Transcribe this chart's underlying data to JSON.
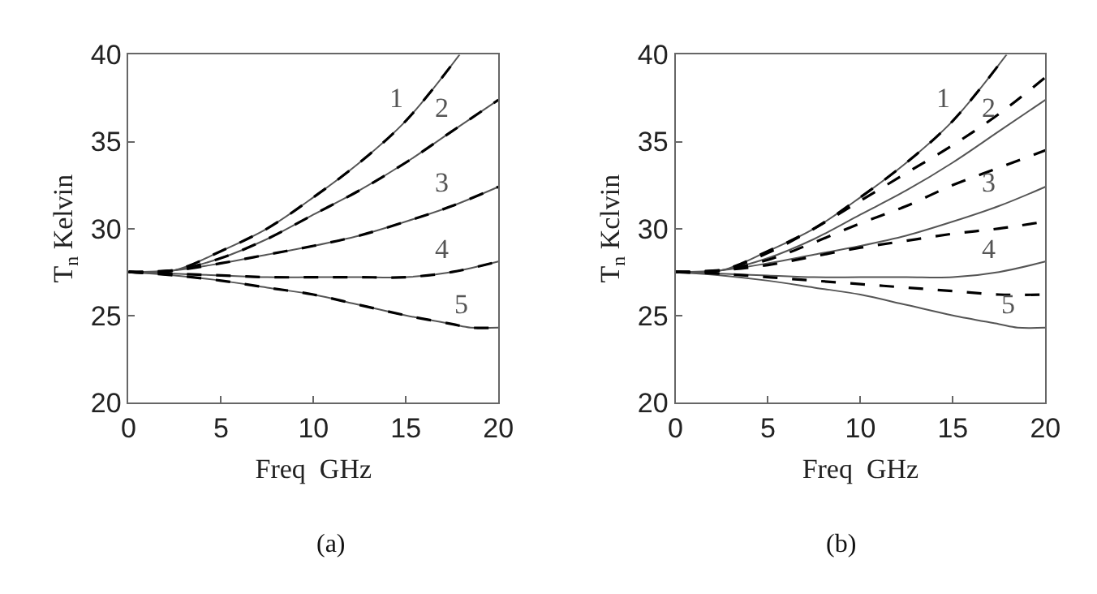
{
  "chart_data": [
    {
      "type": "line",
      "xlabel": "Freq  GHz",
      "ylabel": "T$_{n}$ Kelvin",
      "xlim": [
        0,
        20
      ],
      "ylim": [
        20,
        40
      ],
      "xticks": [
        0,
        5,
        10,
        15,
        20
      ],
      "yticks": [
        20,
        25,
        30,
        35,
        40
      ],
      "marker": "none",
      "series": [
        {
          "name": "1",
          "color": "#555555",
          "line_style": "solid",
          "x": [
            0,
            2.5,
            5,
            7.5,
            10,
            12.5,
            15,
            17.9
          ],
          "values": [
            27.5,
            27.6,
            28.7,
            30.0,
            31.8,
            33.8,
            36.2,
            40
          ]
        },
        {
          "name": "2",
          "color": "#555555",
          "line_style": "solid",
          "x": [
            0,
            2.5,
            5,
            7.5,
            10,
            12.5,
            15,
            17.5,
            20
          ],
          "values": [
            27.5,
            27.6,
            28.3,
            29.4,
            30.8,
            32.2,
            33.8,
            35.6,
            37.4
          ]
        },
        {
          "name": "3",
          "color": "#555555",
          "line_style": "solid",
          "x": [
            0,
            2.5,
            5,
            7.5,
            10,
            12.5,
            15,
            17.5,
            20
          ],
          "values": [
            27.5,
            27.6,
            28.0,
            28.5,
            29.0,
            29.6,
            30.4,
            31.3,
            32.4
          ]
        },
        {
          "name": "4",
          "color": "#555555",
          "line_style": "solid",
          "x": [
            0,
            2.5,
            5,
            7.5,
            10,
            12.5,
            15,
            17.5,
            20
          ],
          "values": [
            27.5,
            27.4,
            27.3,
            27.2,
            27.2,
            27.2,
            27.2,
            27.5,
            28.1
          ]
        },
        {
          "name": "5",
          "color": "#555555",
          "line_style": "solid",
          "x": [
            0,
            2.5,
            5,
            7.5,
            10,
            12.5,
            15,
            17.5,
            18.5,
            20
          ],
          "values": [
            27.5,
            27.3,
            27.0,
            26.6,
            26.2,
            25.6,
            25.0,
            24.5,
            24.3,
            24.3
          ]
        },
        {
          "color": "#000000",
          "line_style": "dashed",
          "x": [
            0,
            2.5,
            5,
            7.5,
            10,
            12.5,
            15,
            17.9
          ],
          "values": [
            27.5,
            27.6,
            28.7,
            30.0,
            31.8,
            33.8,
            36.2,
            40
          ]
        },
        {
          "color": "#000000",
          "line_style": "dashed",
          "x": [
            0,
            2.5,
            5,
            7.5,
            10,
            12.5,
            15,
            17.5,
            20
          ],
          "values": [
            27.5,
            27.6,
            28.3,
            29.4,
            30.8,
            32.2,
            33.8,
            35.6,
            37.4
          ]
        },
        {
          "color": "#000000",
          "line_style": "dashed",
          "x": [
            0,
            2.5,
            5,
            7.5,
            10,
            12.5,
            15,
            17.5,
            20
          ],
          "values": [
            27.5,
            27.6,
            28.0,
            28.5,
            29.0,
            29.6,
            30.4,
            31.3,
            32.4
          ]
        },
        {
          "color": "#000000",
          "line_style": "dashed",
          "x": [
            0,
            2.5,
            5,
            7.5,
            10,
            12.5,
            15,
            17.5,
            20
          ],
          "values": [
            27.5,
            27.4,
            27.3,
            27.2,
            27.2,
            27.2,
            27.2,
            27.5,
            28.1
          ]
        },
        {
          "color": "#000000",
          "line_style": "dashed",
          "x": [
            0,
            2.5,
            5,
            7.5,
            10,
            12.5,
            15,
            17.5,
            18.5,
            20
          ],
          "values": [
            27.5,
            27.3,
            27.0,
            26.6,
            26.2,
            25.6,
            25.0,
            24.5,
            24.3,
            24.3
          ]
        }
      ],
      "annotations": [
        "(a)"
      ]
    },
    {
      "type": "line",
      "xlabel": "Freq  GHz",
      "ylabel": "T$_{n}$ Kclvin",
      "xlim": [
        0,
        20
      ],
      "ylim": [
        20,
        40
      ],
      "xticks": [
        0,
        5,
        10,
        15,
        20
      ],
      "yticks": [
        20,
        25,
        30,
        35,
        40
      ],
      "marker": "none",
      "series": [
        {
          "name": "1",
          "color": "#555555",
          "line_style": "solid",
          "x": [
            0,
            2.5,
            5,
            7.5,
            10,
            12.5,
            15,
            17.9
          ],
          "values": [
            27.5,
            27.6,
            28.7,
            30.0,
            31.8,
            33.8,
            36.2,
            40
          ]
        },
        {
          "name": "2",
          "color": "#555555",
          "line_style": "solid",
          "x": [
            0,
            2.5,
            5,
            7.5,
            10,
            12.5,
            15,
            17.5,
            20
          ],
          "values": [
            27.5,
            27.6,
            28.3,
            29.4,
            30.8,
            32.2,
            33.8,
            35.6,
            37.4
          ]
        },
        {
          "name": "3",
          "color": "#555555",
          "line_style": "solid",
          "x": [
            0,
            2.5,
            5,
            7.5,
            10,
            12.5,
            15,
            17.5,
            20
          ],
          "values": [
            27.5,
            27.6,
            28.0,
            28.5,
            29.0,
            29.6,
            30.4,
            31.3,
            32.4
          ]
        },
        {
          "name": "4",
          "color": "#555555",
          "line_style": "solid",
          "x": [
            0,
            2.5,
            5,
            7.5,
            10,
            12.5,
            15,
            17.5,
            20
          ],
          "values": [
            27.5,
            27.4,
            27.3,
            27.2,
            27.2,
            27.2,
            27.2,
            27.5,
            28.1
          ]
        },
        {
          "name": "5",
          "color": "#555555",
          "line_style": "solid",
          "x": [
            0,
            2.5,
            5,
            7.5,
            10,
            12.5,
            15,
            17.5,
            18.5,
            20
          ],
          "values": [
            27.5,
            27.3,
            27.0,
            26.6,
            26.2,
            25.6,
            25.0,
            24.5,
            24.3,
            24.3
          ]
        },
        {
          "color": "#000000",
          "line_style": "dashed",
          "x": [
            0,
            2.5,
            5,
            7.5,
            10,
            12.5,
            15,
            17.9
          ],
          "values": [
            27.5,
            27.6,
            28.7,
            30.0,
            31.8,
            33.8,
            36.2,
            40
          ]
        },
        {
          "color": "#000000",
          "line_style": "dashed",
          "x": [
            0,
            2.5,
            5,
            7.5,
            10,
            12.5,
            15,
            17.5,
            20
          ],
          "values": [
            27.5,
            27.6,
            28.6,
            30.0,
            31.6,
            33.2,
            34.8,
            36.6,
            38.7
          ]
        },
        {
          "color": "#000000",
          "line_style": "dashed",
          "x": [
            0,
            2.5,
            5,
            7.5,
            10,
            12.5,
            15,
            17.5,
            20
          ],
          "values": [
            27.5,
            27.6,
            28.2,
            29.2,
            30.3,
            31.3,
            32.5,
            33.5,
            34.5
          ]
        },
        {
          "color": "#000000",
          "line_style": "dashed",
          "x": [
            0,
            2.5,
            5,
            7.5,
            10,
            12.5,
            15,
            17.5,
            20
          ],
          "values": [
            27.5,
            27.6,
            27.9,
            28.4,
            28.9,
            29.3,
            29.7,
            30.0,
            30.4
          ]
        },
        {
          "color": "#000000",
          "line_style": "dashed",
          "x": [
            0,
            2.5,
            5,
            7.5,
            10,
            12.5,
            15,
            17.5,
            20
          ],
          "values": [
            27.5,
            27.4,
            27.2,
            27.0,
            26.8,
            26.6,
            26.4,
            26.2,
            26.2
          ]
        }
      ],
      "annotations": [
        "(b)"
      ]
    }
  ]
}
